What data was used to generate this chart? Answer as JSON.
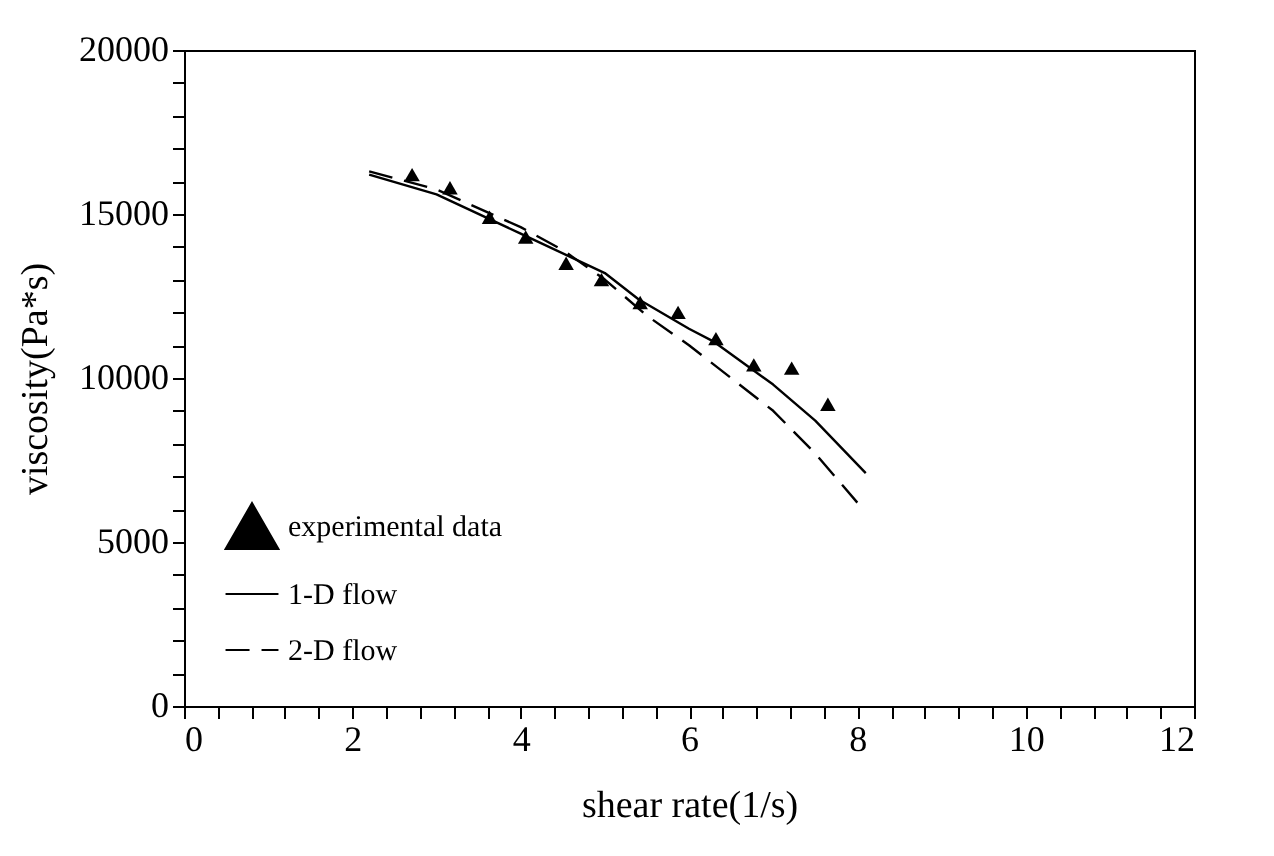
{
  "chart_data": {
    "type": "scatter",
    "xlabel": "shear rate(1/s)",
    "ylabel": "viscosity(Pa*s)",
    "xlim": [
      0,
      12
    ],
    "ylim": [
      0,
      20000
    ],
    "xticks": [
      0,
      {
        "value": 0.4,
        "label": null
      },
      {
        "value": 0.8,
        "label": null
      },
      {
        "value": 1.2,
        "label": null
      },
      {
        "value": 1.6,
        "label": null
      },
      2,
      {
        "value": 2.4,
        "label": null
      },
      {
        "value": 2.8,
        "label": null
      },
      {
        "value": 3.2,
        "label": null
      },
      {
        "value": 3.6,
        "label": null
      },
      4,
      {
        "value": 4.4,
        "label": null
      },
      {
        "value": 4.8,
        "label": null
      },
      {
        "value": 5.2,
        "label": null
      },
      {
        "value": 5.6,
        "label": null
      },
      6,
      {
        "value": 6.4,
        "label": null
      },
      {
        "value": 6.8,
        "label": null
      },
      {
        "value": 7.2,
        "label": null
      },
      {
        "value": 7.6,
        "label": null
      },
      8,
      {
        "value": 8.4,
        "label": null
      },
      {
        "value": 8.8,
        "label": null
      },
      {
        "value": 9.2,
        "label": null
      },
      {
        "value": 9.6,
        "label": null
      },
      10,
      {
        "value": 10.4,
        "label": null
      },
      {
        "value": 10.8,
        "label": null
      },
      {
        "value": 11.2,
        "label": null
      },
      {
        "value": 11.6,
        "label": null
      },
      12
    ],
    "yticks": [
      0,
      {
        "value": 1000,
        "label": null
      },
      {
        "value": 2000,
        "label": null
      },
      {
        "value": 3000,
        "label": null
      },
      {
        "value": 4000,
        "label": null
      },
      5000,
      {
        "value": 6000,
        "label": null
      },
      {
        "value": 7000,
        "label": null
      },
      {
        "value": 8000,
        "label": null
      },
      {
        "value": 9000,
        "label": null
      },
      10000,
      {
        "value": 11000,
        "label": null
      },
      {
        "value": 12000,
        "label": null
      },
      {
        "value": 13000,
        "label": null
      },
      {
        "value": 14000,
        "label": null
      },
      15000,
      {
        "value": 16000,
        "label": null
      },
      {
        "value": 17000,
        "label": null
      },
      {
        "value": 18000,
        "label": null
      },
      {
        "value": 19000,
        "label": null
      },
      20000
    ],
    "grid": false,
    "legend": "bottom left",
    "series": [
      {
        "name": "experimental data",
        "marker": "triangle",
        "color": "#000000",
        "x": [
          2.71,
          3.16,
          3.63,
          4.06,
          4.54,
          4.96,
          5.42,
          5.87,
          6.32,
          6.77,
          7.22,
          7.65
        ],
        "values": [
          16200,
          15800,
          14900,
          14300,
          13500,
          13000,
          12300,
          12000,
          11200,
          10400,
          10300,
          9200
        ]
      },
      {
        "name": "1-D flow",
        "type": "line",
        "line_style": "solid",
        "marker": "none",
        "color": "#000000",
        "x": [
          2.2,
          3,
          4,
          5,
          5.4,
          6,
          6.3,
          7,
          7.5,
          8.1
        ],
        "values": [
          16200,
          15600,
          14400,
          13200,
          12400,
          11500,
          11100,
          9800,
          8700,
          7100
        ]
      },
      {
        "name": "2-D flow",
        "type": "line",
        "line_style": "dashed",
        "marker": "none",
        "color": "#000000",
        "x": [
          2.2,
          3,
          4,
          4.5,
          5,
          5.5,
          6,
          6.5,
          7,
          7.5,
          8
        ],
        "values": [
          16300,
          15750,
          14600,
          13900,
          13000,
          11900,
          11000,
          10000,
          9000,
          7700,
          6200
        ]
      }
    ]
  }
}
